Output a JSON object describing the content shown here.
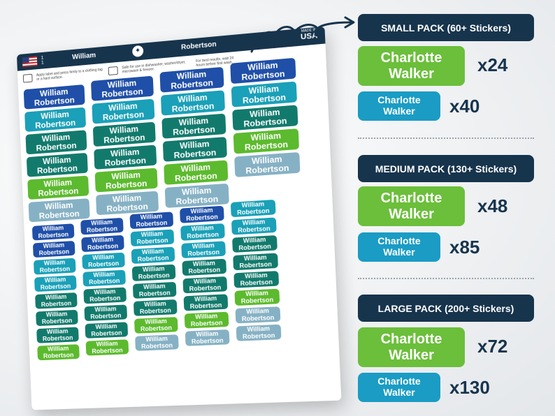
{
  "sheet": {
    "header": {
      "page_top": "1",
      "page_bottom": "1",
      "first_name": "William",
      "last_name": "Robertson",
      "made_in_line1": "MADE IN",
      "made_in_line2": "USA"
    },
    "instructions": [
      "Apply label and press firmly to a clothing tag or a hard surface.",
      "Safe for use in dishwasher, washer/dryer, microwave & freezer.",
      "For best results, wait 24 hours before first wash."
    ],
    "sticker_line1": "William",
    "sticker_line2": "Robertson"
  },
  "colors": {
    "navy": "#17344d",
    "blue": "#1f4fa8",
    "teal": "#1aa0b8",
    "dark_teal": "#127a6c",
    "green": "#5cba2e",
    "light_blue": "#86b1c4",
    "brand_green": "#6bbf3b",
    "brand_blue": "#1a9cc4"
  },
  "packs": [
    {
      "title": "SMALL PACK (60+ Stickers)",
      "large_line1": "Charlotte",
      "large_line2": "Walker",
      "large_qty": "x24",
      "small_line1": "Charlotte",
      "small_line2": "Walker",
      "small_qty": "x40"
    },
    {
      "title": "MEDIUM PACK (130+ Stickers)",
      "large_line1": "Charlotte",
      "large_line2": "Walker",
      "large_qty": "x48",
      "small_line1": "Charlotte",
      "small_line2": "Walker",
      "small_qty": "x85"
    },
    {
      "title": "LARGE PACK (200+ Stickers)",
      "large_line1": "Charlotte",
      "large_line2": "Walker",
      "large_qty": "x72",
      "small_line1": "Charlotte",
      "small_line2": "Walker",
      "small_qty": "x130"
    }
  ]
}
